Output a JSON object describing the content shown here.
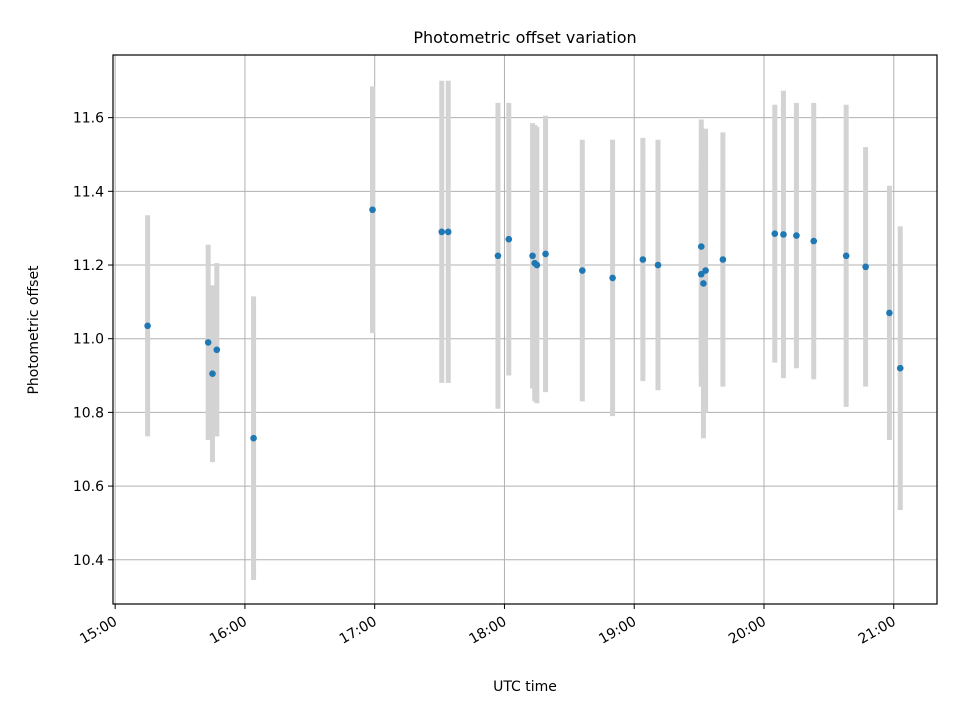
{
  "chart_data": {
    "type": "scatter",
    "title": "Photometric offset variation",
    "xlabel": "UTC time",
    "ylabel": "Photometric offset",
    "xlim": [
      "14:59",
      "21:20"
    ],
    "ylim": [
      10.28,
      11.77
    ],
    "xticks": [
      "15:00",
      "16:00",
      "17:00",
      "18:00",
      "19:00",
      "20:00",
      "21:00"
    ],
    "yticks": [
      10.4,
      10.6,
      10.8,
      11.0,
      11.2,
      11.4,
      11.6
    ],
    "grid": true,
    "colors": {
      "points": "#1f77b4",
      "errorbars": "#d3d3d3",
      "grid": "#b0b0b0"
    },
    "series": [
      {
        "points": [
          {
            "x": "15:15",
            "y": 11.035,
            "yerr": 0.3
          },
          {
            "x": "15:43",
            "y": 10.99,
            "yerr": 0.265
          },
          {
            "x": "15:45",
            "y": 10.905,
            "yerr": 0.24
          },
          {
            "x": "15:47",
            "y": 10.97,
            "yerr": 0.235
          },
          {
            "x": "16:04",
            "y": 10.73,
            "yerr": 0.385
          },
          {
            "x": "16:59",
            "y": 11.35,
            "yerr": 0.335
          },
          {
            "x": "17:31",
            "y": 11.29,
            "yerr": 0.41
          },
          {
            "x": "17:34",
            "y": 11.29,
            "yerr": 0.41
          },
          {
            "x": "17:57",
            "y": 11.225,
            "yerr": 0.415
          },
          {
            "x": "18:02",
            "y": 11.27,
            "yerr": 0.37
          },
          {
            "x": "18:13",
            "y": 11.225,
            "yerr": 0.36
          },
          {
            "x": "18:14",
            "y": 11.205,
            "yerr": 0.375
          },
          {
            "x": "18:15",
            "y": 11.2,
            "yerr": 0.375
          },
          {
            "x": "18:19",
            "y": 11.23,
            "yerr": 0.375
          },
          {
            "x": "18:36",
            "y": 11.185,
            "yerr": 0.355
          },
          {
            "x": "18:50",
            "y": 11.165,
            "yerr": 0.375
          },
          {
            "x": "19:04",
            "y": 11.215,
            "yerr": 0.33
          },
          {
            "x": "19:11",
            "y": 11.2,
            "yerr": 0.34
          },
          {
            "x": "19:31",
            "y": 11.25,
            "yerr": 0.345
          },
          {
            "x": "19:31",
            "y": 11.175,
            "yerr": 0.305
          },
          {
            "x": "19:32",
            "y": 11.15,
            "yerr": 0.42
          },
          {
            "x": "19:33",
            "y": 11.185,
            "yerr": 0.385
          },
          {
            "x": "19:41",
            "y": 11.215,
            "yerr": 0.345
          },
          {
            "x": "20:05",
            "y": 11.285,
            "yerr": 0.35
          },
          {
            "x": "20:09",
            "y": 11.283,
            "yerr": 0.39
          },
          {
            "x": "20:15",
            "y": 11.28,
            "yerr": 0.36
          },
          {
            "x": "20:23",
            "y": 11.265,
            "yerr": 0.375
          },
          {
            "x": "20:38",
            "y": 11.225,
            "yerr": 0.41
          },
          {
            "x": "20:47",
            "y": 11.195,
            "yerr": 0.325
          },
          {
            "x": "20:58",
            "y": 11.07,
            "yerr": 0.345
          },
          {
            "x": "21:03",
            "y": 10.92,
            "yerr": 0.385
          }
        ]
      }
    ]
  }
}
